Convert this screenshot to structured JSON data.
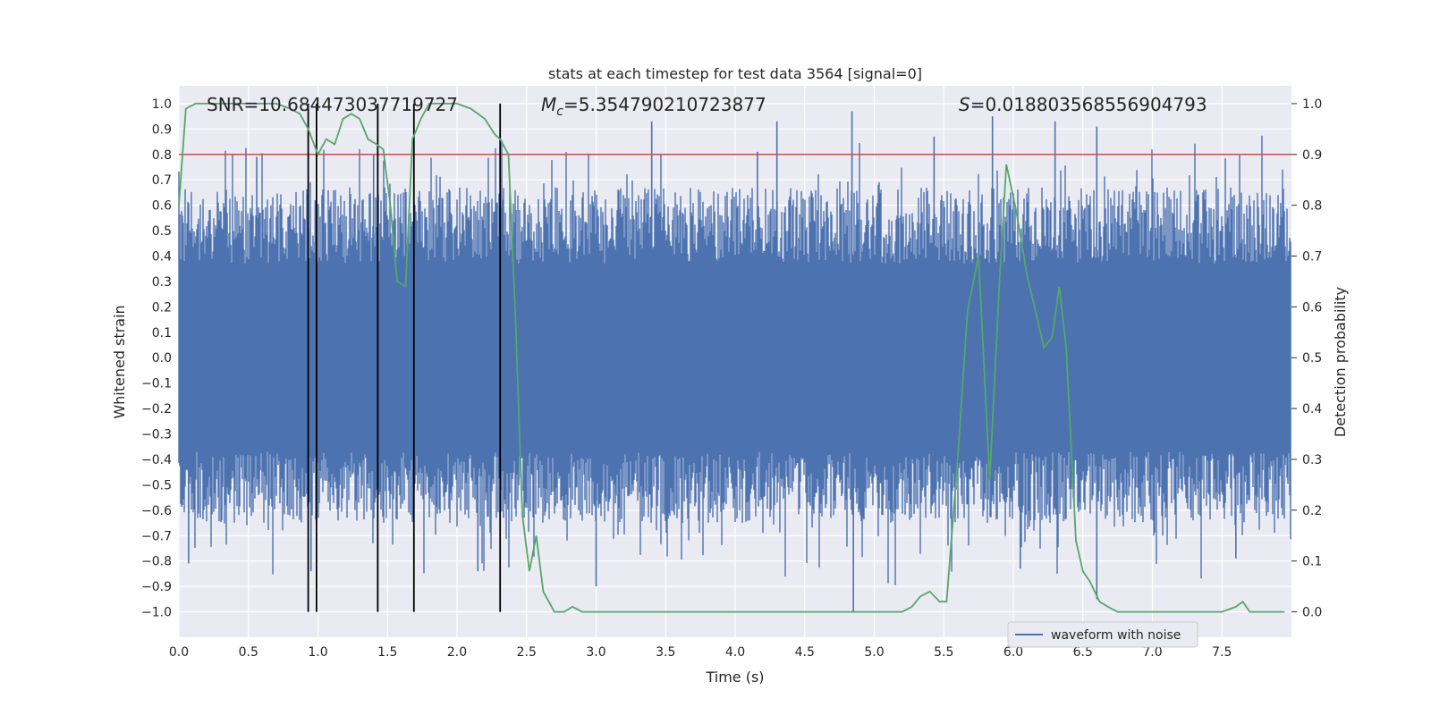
{
  "chart_data": {
    "type": "line",
    "title": "stats at each timestep for test data 3564 [signal=0]",
    "xlabel": "Time (s)",
    "ylabel": "Whitened strain",
    "ylabel_right": "Detection probability",
    "xlim": [
      0.0,
      8.0
    ],
    "ylim": [
      -1.1,
      1.07
    ],
    "ylim_right": [
      -0.05,
      1.035
    ],
    "xticks": [
      "0.0",
      "0.5",
      "1.0",
      "1.5",
      "2.0",
      "2.5",
      "3.0",
      "3.5",
      "4.0",
      "4.5",
      "5.0",
      "5.5",
      "6.0",
      "6.5",
      "7.0",
      "7.5"
    ],
    "yticks": [
      "1.0",
      "0.9",
      "0.8",
      "0.7",
      "0.6",
      "0.5",
      "0.4",
      "0.3",
      "0.2",
      "0.1",
      "0.0",
      "-0.1",
      "-0.2",
      "-0.3",
      "-0.4",
      "-0.5",
      "-0.6",
      "-0.7",
      "-0.8",
      "-0.9",
      "-1.0"
    ],
    "yticks_right": [
      "1.0",
      "0.9",
      "0.8",
      "0.7",
      "0.6",
      "0.5",
      "0.4",
      "0.3",
      "0.2",
      "0.1",
      "0.0"
    ],
    "annotations": {
      "snr": "SNR=10.684473037719727",
      "mc": "=5.354790210723877",
      "mc_symbol": "M",
      "mc_sub": "c",
      "s": "=0.018803568556904793",
      "s_symbol": "S"
    },
    "legend": {
      "label": "waveform with noise",
      "location": "lower-right"
    },
    "threshold": 0.9,
    "vlines": [
      0.93,
      0.99,
      1.43,
      1.69,
      2.31
    ],
    "series": [
      {
        "name": "waveform with noise",
        "color": "#4c72b0",
        "kind": "noise",
        "band_lower": -0.37,
        "band_upper": 0.37,
        "peak_max": [
          {
            "x": 0.56,
            "y": 0.79
          },
          {
            "x": 0.98,
            "y": 0.62
          },
          {
            "x": 1.4,
            "y": 0.8
          },
          {
            "x": 3.4,
            "y": 0.93
          },
          {
            "x": 4.16,
            "y": 0.81
          },
          {
            "x": 4.3,
            "y": 0.93
          },
          {
            "x": 4.84,
            "y": 0.97
          },
          {
            "x": 5.43,
            "y": 0.87
          },
          {
            "x": 5.85,
            "y": 0.95
          },
          {
            "x": 6.3,
            "y": 0.93
          },
          {
            "x": 6.6,
            "y": 0.91
          }
        ],
        "peak_min": [
          {
            "x": 0.07,
            "y": -0.81
          },
          {
            "x": 0.95,
            "y": -0.84
          },
          {
            "x": 2.15,
            "y": -0.84
          },
          {
            "x": 3.0,
            "y": -0.9
          },
          {
            "x": 4.85,
            "y": -1.0
          },
          {
            "x": 6.05,
            "y": -0.83
          },
          {
            "x": 6.6,
            "y": -0.95
          },
          {
            "x": 7.6,
            "y": -0.79
          }
        ]
      },
      {
        "name": "detection probability",
        "color": "#55a868",
        "axis": "right",
        "x": [
          0.0,
          0.05,
          0.12,
          0.2,
          0.3,
          0.4,
          0.5,
          0.6,
          0.7,
          0.8,
          0.87,
          0.93,
          1.0,
          1.06,
          1.12,
          1.18,
          1.24,
          1.3,
          1.36,
          1.42,
          1.47,
          1.52,
          1.57,
          1.63,
          1.68,
          1.74,
          1.8,
          1.9,
          2.0,
          2.1,
          2.2,
          2.27,
          2.31,
          2.37,
          2.42,
          2.47,
          2.52,
          2.57,
          2.62,
          2.7,
          2.77,
          2.83,
          2.9,
          3.0,
          3.3,
          3.5,
          3.7,
          4.0,
          4.3,
          4.5,
          4.8,
          5.0,
          5.2,
          5.27,
          5.33,
          5.4,
          5.47,
          5.52,
          5.6,
          5.67,
          5.75,
          5.83,
          5.9,
          5.95,
          6.02,
          6.1,
          6.17,
          6.22,
          6.28,
          6.33,
          6.38,
          6.45,
          6.5,
          6.55,
          6.62,
          6.68,
          6.75,
          6.9,
          7.0,
          7.2,
          7.4,
          7.5,
          7.6,
          7.65,
          7.7,
          7.8,
          7.95
        ],
        "y": [
          0.8,
          0.99,
          1.0,
          1.0,
          1.0,
          1.0,
          1.0,
          1.0,
          1.0,
          0.99,
          0.98,
          0.95,
          0.9,
          0.93,
          0.92,
          0.97,
          0.98,
          0.97,
          0.93,
          0.92,
          0.91,
          0.8,
          0.65,
          0.64,
          0.93,
          0.97,
          1.0,
          1.0,
          1.0,
          0.99,
          0.97,
          0.94,
          0.93,
          0.9,
          0.58,
          0.19,
          0.08,
          0.15,
          0.04,
          0.0,
          0.0,
          0.01,
          0.0,
          0.0,
          0.0,
          0.0,
          0.0,
          0.0,
          0.0,
          0.0,
          0.0,
          0.0,
          0.0,
          0.01,
          0.03,
          0.04,
          0.02,
          0.02,
          0.3,
          0.59,
          0.7,
          0.26,
          0.65,
          0.88,
          0.79,
          0.66,
          0.58,
          0.52,
          0.54,
          0.64,
          0.52,
          0.14,
          0.08,
          0.06,
          0.02,
          0.01,
          0.0,
          0.0,
          0.0,
          0.0,
          0.0,
          0.0,
          0.01,
          0.02,
          0.0,
          0.0,
          0.0
        ]
      }
    ]
  }
}
